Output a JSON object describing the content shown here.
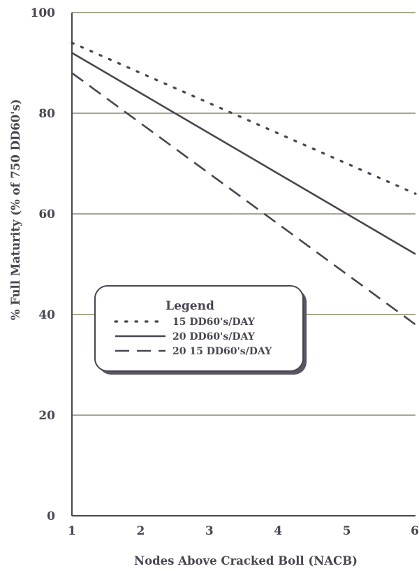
{
  "chart_data": {
    "type": "line",
    "title": "",
    "xlabel": "Nodes Above Cracked Boll (NACB)",
    "ylabel": "% Full Maturity (% of 750 DD60's)",
    "xlim": [
      1,
      6
    ],
    "ylim": [
      0,
      100
    ],
    "x_ticks": [
      "1",
      "2",
      "3",
      "4",
      "5",
      "6"
    ],
    "y_ticks": [
      "0",
      "20",
      "40",
      "60",
      "80",
      "100"
    ],
    "grid": "horizontal",
    "legend": {
      "title": "Legend",
      "placement": "center-left"
    },
    "series": [
      {
        "name": "15 DD60's/DAY",
        "style": "dotted",
        "x": [
          1,
          6
        ],
        "y": [
          94,
          64
        ]
      },
      {
        "name": "20 DD60's/DAY",
        "style": "solid",
        "x": [
          1,
          6
        ],
        "y": [
          92,
          52
        ]
      },
      {
        "name": "20 15 DD60's/DAY",
        "style": "dashed",
        "x": [
          1,
          6
        ],
        "y": [
          88,
          38
        ]
      }
    ],
    "colors": {
      "ink": "#4a4550",
      "grid": "#8a8a6a"
    }
  }
}
